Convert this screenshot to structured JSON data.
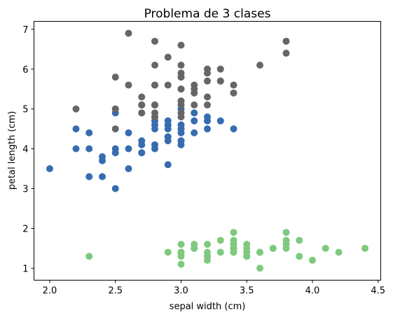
{
  "chart_data": {
    "type": "scatter",
    "title": "Problema de 3 clases",
    "xlabel": "sepal width (cm)",
    "ylabel": "petal length (cm)",
    "xlim": [
      1.88,
      4.52
    ],
    "ylim": [
      0.7,
      7.2
    ],
    "xticks": [
      "2.0",
      "2.5",
      "3.0",
      "3.5",
      "4.0",
      "4.5"
    ],
    "yticks": [
      "1",
      "2",
      "3",
      "4",
      "5",
      "6",
      "7"
    ],
    "grid": false,
    "series": [
      {
        "color": "#7fc97f",
        "points": [
          [
            3.5,
            1.4
          ],
          [
            3.0,
            1.4
          ],
          [
            3.2,
            1.3
          ],
          [
            3.1,
            1.5
          ],
          [
            3.6,
            1.4
          ],
          [
            3.9,
            1.7
          ],
          [
            3.4,
            1.4
          ],
          [
            3.4,
            1.5
          ],
          [
            2.9,
            1.4
          ],
          [
            3.1,
            1.5
          ],
          [
            3.7,
            1.5
          ],
          [
            3.4,
            1.6
          ],
          [
            3.0,
            1.4
          ],
          [
            3.0,
            1.1
          ],
          [
            4.0,
            1.2
          ],
          [
            4.4,
            1.5
          ],
          [
            3.9,
            1.3
          ],
          [
            3.5,
            1.4
          ],
          [
            3.8,
            1.7
          ],
          [
            3.8,
            1.5
          ],
          [
            3.4,
            1.7
          ],
          [
            3.7,
            1.5
          ],
          [
            3.6,
            1.0
          ],
          [
            3.3,
            1.7
          ],
          [
            3.4,
            1.9
          ],
          [
            3.0,
            1.6
          ],
          [
            3.4,
            1.6
          ],
          [
            3.5,
            1.5
          ],
          [
            3.4,
            1.4
          ],
          [
            3.2,
            1.6
          ],
          [
            3.1,
            1.6
          ],
          [
            3.4,
            1.5
          ],
          [
            4.1,
            1.5
          ],
          [
            4.2,
            1.4
          ],
          [
            3.1,
            1.5
          ],
          [
            3.2,
            1.2
          ],
          [
            3.5,
            1.3
          ],
          [
            3.6,
            1.4
          ],
          [
            3.0,
            1.3
          ],
          [
            3.4,
            1.5
          ],
          [
            3.5,
            1.3
          ],
          [
            2.3,
            1.3
          ],
          [
            3.2,
            1.3
          ],
          [
            3.5,
            1.6
          ],
          [
            3.8,
            1.9
          ],
          [
            3.0,
            1.4
          ],
          [
            3.8,
            1.6
          ],
          [
            3.2,
            1.4
          ],
          [
            3.7,
            1.5
          ],
          [
            3.3,
            1.4
          ]
        ]
      },
      {
        "color": "#386cb0",
        "points": [
          [
            3.2,
            4.7
          ],
          [
            3.2,
            4.5
          ],
          [
            3.1,
            4.9
          ],
          [
            2.3,
            4.0
          ],
          [
            2.8,
            4.6
          ],
          [
            2.8,
            4.5
          ],
          [
            3.3,
            4.7
          ],
          [
            2.4,
            3.3
          ],
          [
            2.9,
            4.6
          ],
          [
            2.7,
            3.9
          ],
          [
            2.0,
            3.5
          ],
          [
            3.0,
            4.2
          ],
          [
            2.2,
            4.0
          ],
          [
            2.9,
            4.7
          ],
          [
            2.9,
            3.6
          ],
          [
            3.1,
            4.4
          ],
          [
            3.0,
            4.5
          ],
          [
            2.7,
            4.1
          ],
          [
            2.2,
            4.5
          ],
          [
            2.5,
            3.9
          ],
          [
            3.2,
            4.8
          ],
          [
            2.8,
            4.0
          ],
          [
            2.5,
            4.9
          ],
          [
            2.8,
            4.7
          ],
          [
            2.9,
            4.3
          ],
          [
            3.0,
            4.4
          ],
          [
            2.8,
            4.8
          ],
          [
            3.0,
            5.0
          ],
          [
            2.9,
            4.5
          ],
          [
            2.6,
            3.5
          ],
          [
            2.4,
            3.8
          ],
          [
            2.4,
            3.7
          ],
          [
            2.7,
            3.9
          ],
          [
            2.7,
            5.1
          ],
          [
            3.0,
            4.5
          ],
          [
            3.4,
            4.5
          ],
          [
            3.1,
            4.7
          ],
          [
            2.3,
            4.4
          ],
          [
            3.0,
            4.1
          ],
          [
            2.5,
            4.0
          ],
          [
            2.6,
            4.4
          ],
          [
            3.0,
            4.6
          ],
          [
            2.6,
            4.0
          ],
          [
            2.3,
            3.3
          ],
          [
            2.7,
            4.2
          ],
          [
            3.0,
            4.2
          ],
          [
            2.9,
            4.2
          ],
          [
            2.9,
            4.3
          ],
          [
            2.5,
            3.0
          ],
          [
            2.8,
            4.1
          ]
        ]
      },
      {
        "color": "#666666",
        "points": [
          [
            3.3,
            6.0
          ],
          [
            2.7,
            5.1
          ],
          [
            3.0,
            5.9
          ],
          [
            2.9,
            5.6
          ],
          [
            3.0,
            5.8
          ],
          [
            3.0,
            6.6
          ],
          [
            2.5,
            4.5
          ],
          [
            2.9,
            6.3
          ],
          [
            2.5,
            5.8
          ],
          [
            3.6,
            6.1
          ],
          [
            3.2,
            5.1
          ],
          [
            2.7,
            5.3
          ],
          [
            3.0,
            5.5
          ],
          [
            2.5,
            5.0
          ],
          [
            2.8,
            5.1
          ],
          [
            3.2,
            5.3
          ],
          [
            3.0,
            5.5
          ],
          [
            3.8,
            6.7
          ],
          [
            2.6,
            6.9
          ],
          [
            2.2,
            5.0
          ],
          [
            3.2,
            5.7
          ],
          [
            2.8,
            4.9
          ],
          [
            2.8,
            6.7
          ],
          [
            2.7,
            4.9
          ],
          [
            3.3,
            5.7
          ],
          [
            3.2,
            6.0
          ],
          [
            2.8,
            4.8
          ],
          [
            3.0,
            4.9
          ],
          [
            2.8,
            5.6
          ],
          [
            3.0,
            5.8
          ],
          [
            2.8,
            6.1
          ],
          [
            3.8,
            6.4
          ],
          [
            2.8,
            5.6
          ],
          [
            2.8,
            5.1
          ],
          [
            2.6,
            5.6
          ],
          [
            3.0,
            6.1
          ],
          [
            3.4,
            5.6
          ],
          [
            3.1,
            5.5
          ],
          [
            3.0,
            4.8
          ],
          [
            3.1,
            5.4
          ],
          [
            3.1,
            5.6
          ],
          [
            3.1,
            5.1
          ],
          [
            2.7,
            5.1
          ],
          [
            3.2,
            5.9
          ],
          [
            3.3,
            5.7
          ],
          [
            3.0,
            5.2
          ],
          [
            2.5,
            5.0
          ],
          [
            3.0,
            5.2
          ],
          [
            3.4,
            5.4
          ],
          [
            3.0,
            5.1
          ]
        ]
      }
    ]
  }
}
